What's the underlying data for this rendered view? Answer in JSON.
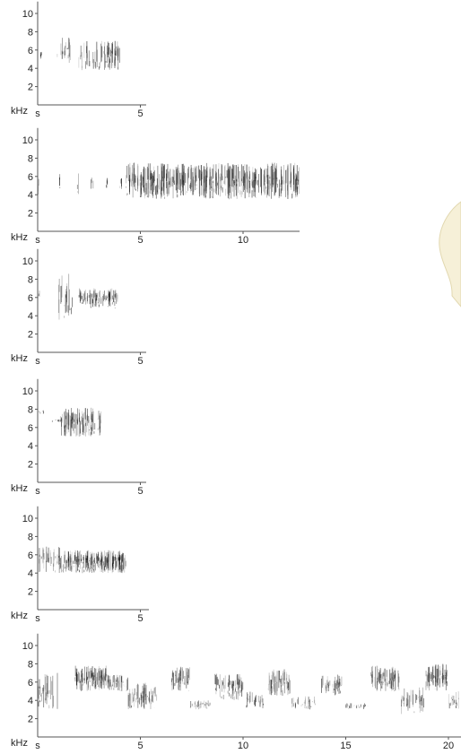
{
  "panels": [
    {
      "y_unit": "kHz",
      "x_unit": "s",
      "yticks": [
        2,
        4,
        6,
        8,
        10
      ],
      "xticks": [
        5
      ]
    },
    {
      "y_unit": "kHz",
      "x_unit": "s",
      "yticks": [
        2,
        4,
        6,
        8,
        10
      ],
      "xticks": [
        5,
        10
      ]
    },
    {
      "y_unit": "kHz",
      "x_unit": "s",
      "yticks": [
        2,
        4,
        6,
        8,
        10
      ],
      "xticks": [
        5
      ]
    },
    {
      "y_unit": "kHz",
      "x_unit": "s",
      "yticks": [
        2,
        4,
        6,
        8,
        10
      ],
      "xticks": [
        5
      ]
    },
    {
      "y_unit": "kHz",
      "x_unit": "s",
      "yticks": [
        2,
        4,
        6,
        8,
        10
      ],
      "xticks": [
        5
      ]
    },
    {
      "y_unit": "kHz",
      "x_unit": "s",
      "yticks": [
        2,
        4,
        6,
        8,
        10
      ],
      "xticks": [
        5,
        10,
        15,
        20
      ]
    }
  ]
}
